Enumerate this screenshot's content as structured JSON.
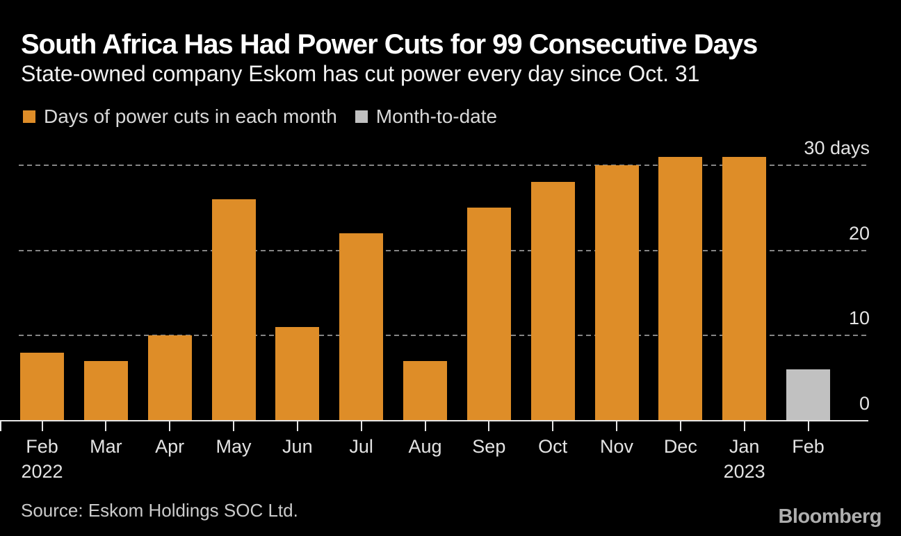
{
  "header": {
    "title": "South Africa Has Had Power Cuts for 99 Consecutive Days",
    "subtitle": "State-owned company Eskom has cut power every day since Oct. 31"
  },
  "legend": [
    {
      "label": "Days of power cuts in each month",
      "color": "#de8d28"
    },
    {
      "label": "Month-to-date",
      "color": "#c1c1c1"
    }
  ],
  "footer": {
    "source": "Source: Eskom Holdings SOC Ltd.",
    "logo": "Bloomberg"
  },
  "chart_data": {
    "type": "bar",
    "title": "South Africa Has Had Power Cuts for 99 Consecutive Days",
    "categories": [
      {
        "label": "Feb",
        "sublabel": "2022"
      },
      {
        "label": "Mar"
      },
      {
        "label": "Apr"
      },
      {
        "label": "May"
      },
      {
        "label": "Jun"
      },
      {
        "label": "Jul"
      },
      {
        "label": "Aug"
      },
      {
        "label": "Sep"
      },
      {
        "label": "Oct"
      },
      {
        "label": "Nov"
      },
      {
        "label": "Dec"
      },
      {
        "label": "Jan",
        "sublabel": "2023"
      },
      {
        "label": "Feb"
      }
    ],
    "series": [
      {
        "name": "Days of power cuts in each month",
        "color": "#de8d28",
        "values": [
          8,
          7,
          10,
          26,
          11,
          22,
          7,
          25,
          28,
          30,
          31,
          31,
          null
        ]
      },
      {
        "name": "Month-to-date",
        "color": "#c1c1c1",
        "values": [
          null,
          null,
          null,
          null,
          null,
          null,
          null,
          null,
          null,
          null,
          null,
          null,
          6
        ]
      }
    ],
    "yticks": [
      {
        "value": 0,
        "label": "0"
      },
      {
        "value": 10,
        "label": "10"
      },
      {
        "value": 20,
        "label": "20"
      },
      {
        "value": 30,
        "label": "30 days"
      }
    ],
    "ylim": [
      0,
      31
    ],
    "grid": "horizontal-dashed",
    "legend_position": "top-left",
    "ylabel": "days",
    "xlabel": ""
  }
}
